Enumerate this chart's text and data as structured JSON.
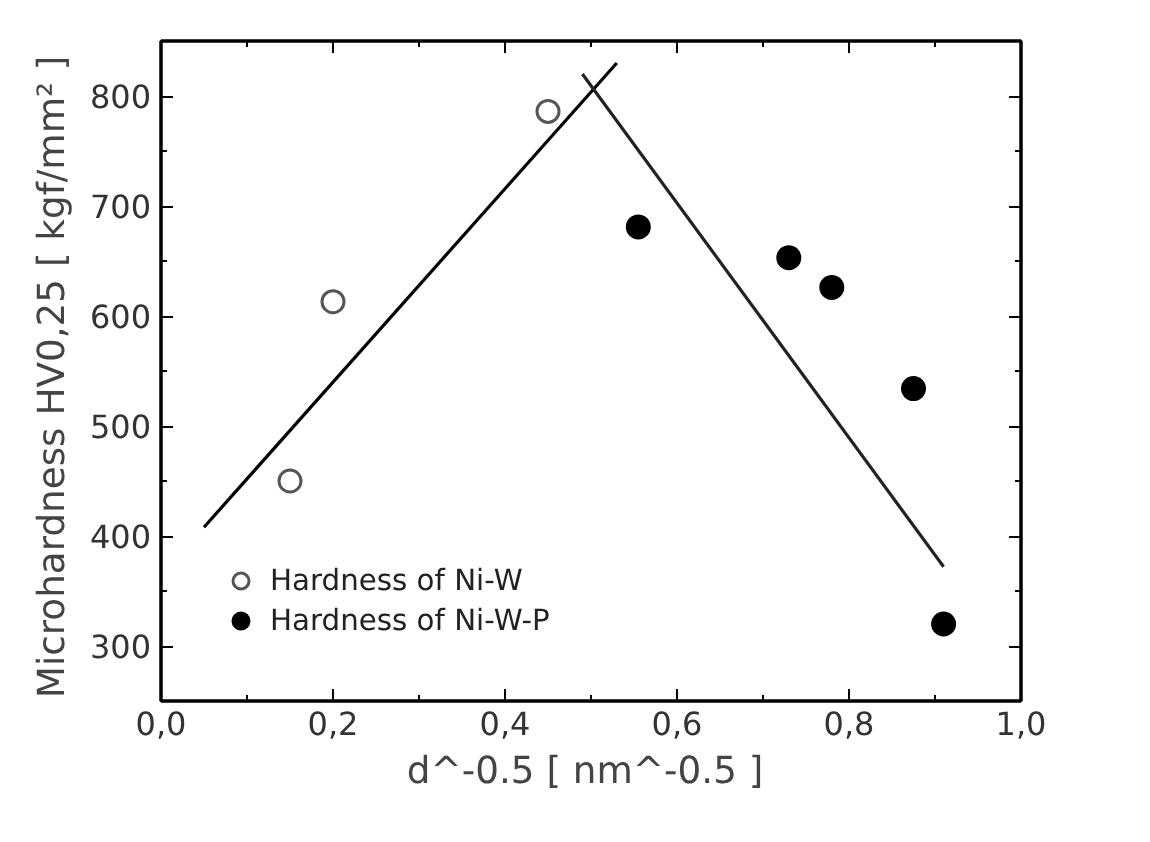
{
  "chart_data": {
    "type": "scatter",
    "xlabel": "d^-0.5  [ nm^-0.5 ]",
    "ylabel": "Microhardness HV0,25  [ kgf/mm² ]",
    "xlim": [
      0,
      1.0
    ],
    "ylim": [
      250,
      850
    ],
    "xticks": [
      {
        "value": 0,
        "label": "0,0"
      },
      {
        "value": 0.2,
        "label": "0,2"
      },
      {
        "value": 0.4,
        "label": "0,4"
      },
      {
        "value": 0.6,
        "label": "0,6"
      },
      {
        "value": 0.8,
        "label": "0,8"
      },
      {
        "value": 1.0,
        "label": "1,0"
      }
    ],
    "yticks": [
      300,
      400,
      500,
      600,
      700,
      800
    ],
    "grid": false,
    "legend": "bottom left",
    "marker": "circle",
    "series": [
      {
        "name": "Hardness of Ni-W",
        "color": "#555555",
        "marker": "circle_open",
        "x": [
          0.15,
          0.2,
          0.45
        ],
        "values": [
          450,
          613,
          786
        ]
      },
      {
        "name": "Hardness of Ni-W-P",
        "color": "#000000",
        "x": [
          0.555,
          0.73,
          0.78,
          0.875,
          0.91
        ],
        "values": [
          681,
          653,
          626,
          534,
          320
        ]
      },
      {
        "type": "line",
        "color": "#000000",
        "marker": "none",
        "x": [
          0.05,
          0.53
        ],
        "values": [
          408,
          830
        ]
      },
      {
        "type": "line",
        "color": "#222222",
        "marker": "none",
        "x": [
          0.49,
          0.91
        ],
        "values": [
          820,
          372
        ]
      }
    ]
  }
}
